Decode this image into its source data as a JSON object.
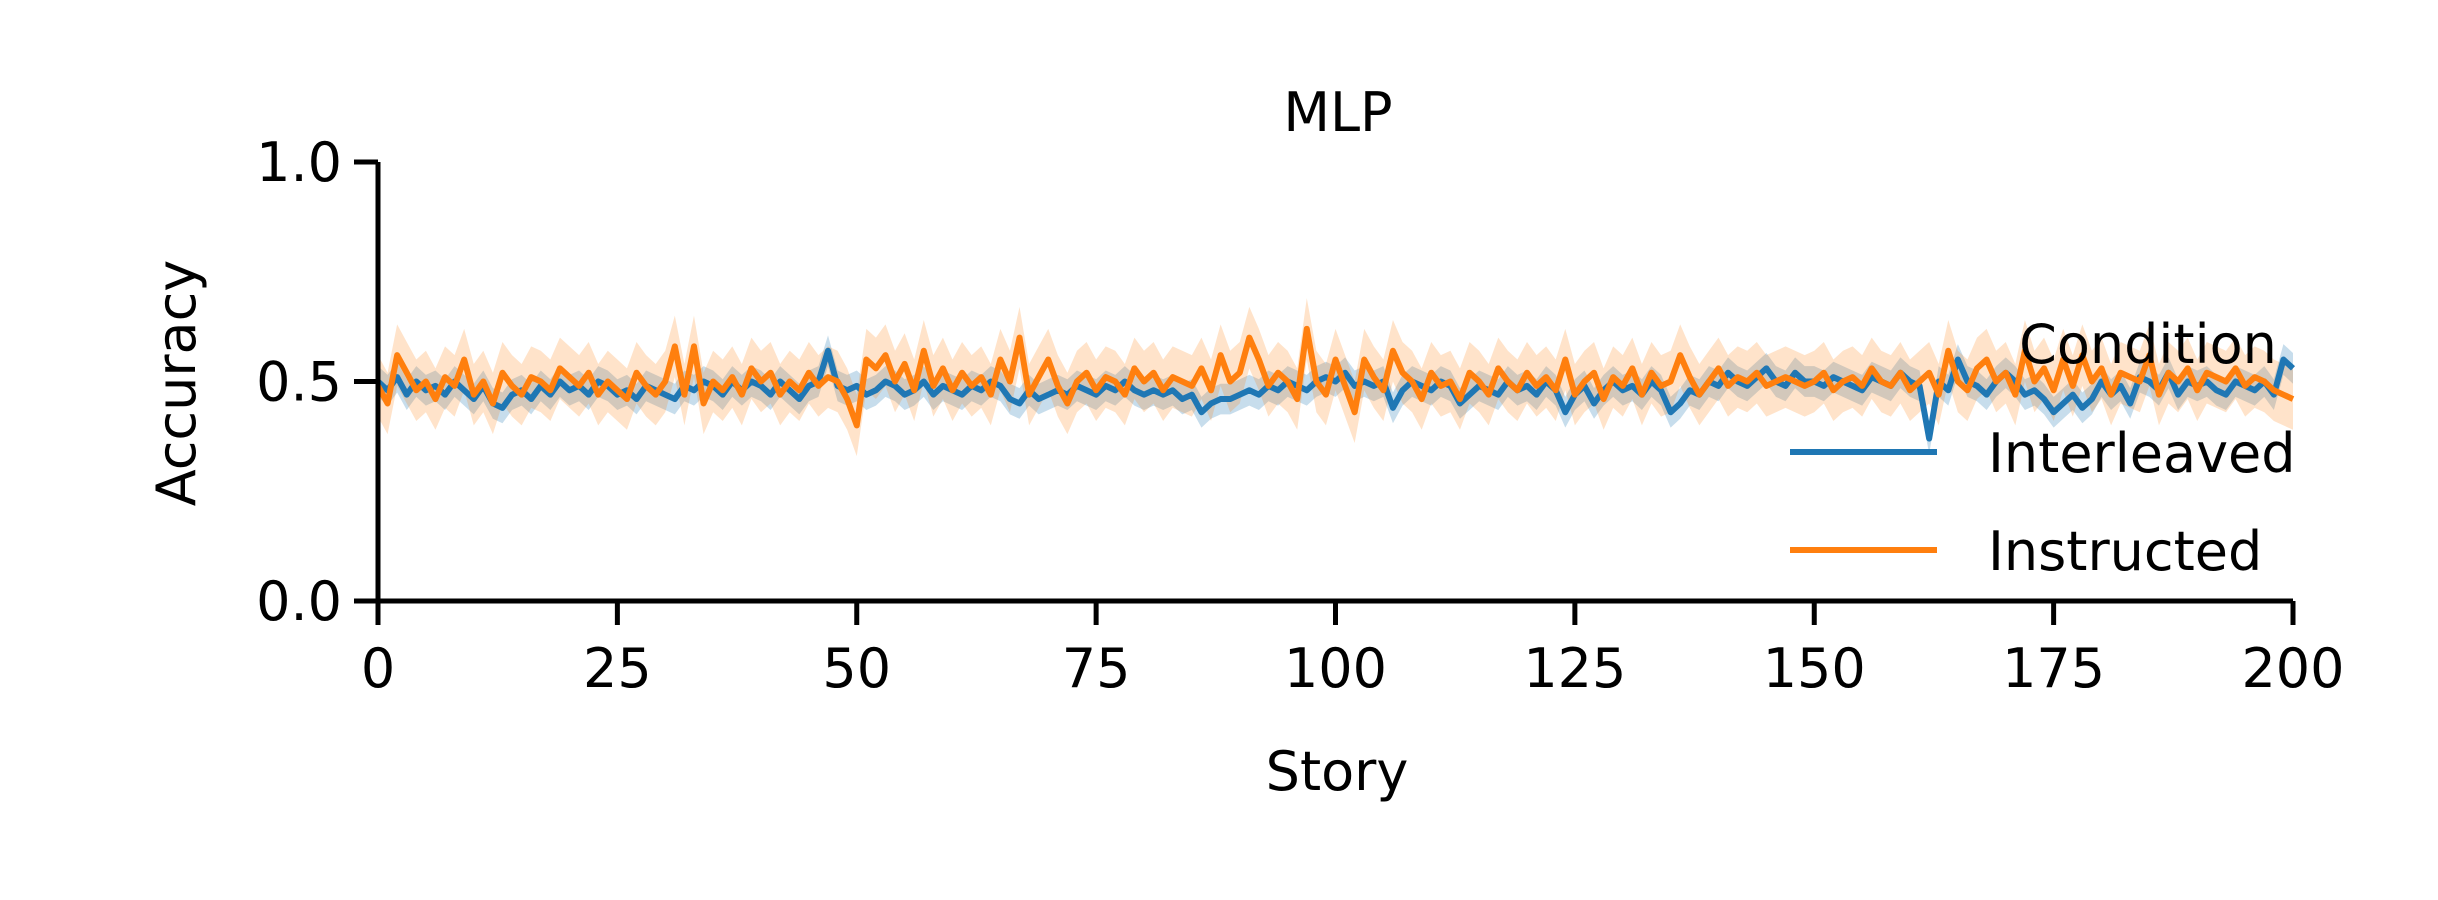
{
  "chart_data": {
    "type": "line",
    "title": "MLP",
    "xlabel": "Story",
    "ylabel": "Accuracy",
    "xlim": [
      0,
      200
    ],
    "ylim": [
      0.0,
      1.0
    ],
    "xticks": [
      "0",
      "25",
      "50",
      "75",
      "100",
      "125",
      "150",
      "175",
      "200"
    ],
    "yticks": [
      "0.0",
      "0.5",
      "1.0"
    ],
    "grid": false,
    "legend": {
      "title": "Condition",
      "position": "right"
    },
    "series": [
      {
        "name": "Interleaved",
        "color": "#1f77b4",
        "band_halfwidth": 0.035,
        "x_start": 0,
        "x_step": 1,
        "values": [
          0.5,
          0.48,
          0.51,
          0.47,
          0.5,
          0.48,
          0.49,
          0.47,
          0.5,
          0.48,
          0.46,
          0.49,
          0.45,
          0.44,
          0.47,
          0.48,
          0.46,
          0.49,
          0.47,
          0.5,
          0.48,
          0.49,
          0.47,
          0.5,
          0.49,
          0.47,
          0.48,
          0.46,
          0.49,
          0.48,
          0.47,
          0.46,
          0.49,
          0.48,
          0.5,
          0.49,
          0.47,
          0.5,
          0.48,
          0.5,
          0.49,
          0.47,
          0.5,
          0.48,
          0.46,
          0.49,
          0.5,
          0.57,
          0.49,
          0.48,
          0.49,
          0.47,
          0.48,
          0.5,
          0.49,
          0.47,
          0.48,
          0.5,
          0.47,
          0.49,
          0.48,
          0.47,
          0.49,
          0.48,
          0.5,
          0.49,
          0.46,
          0.45,
          0.48,
          0.46,
          0.47,
          0.48,
          0.47,
          0.49,
          0.48,
          0.47,
          0.49,
          0.48,
          0.5,
          0.48,
          0.47,
          0.48,
          0.47,
          0.48,
          0.46,
          0.47,
          0.43,
          0.45,
          0.46,
          0.46,
          0.47,
          0.48,
          0.47,
          0.49,
          0.48,
          0.5,
          0.49,
          0.48,
          0.5,
          0.51,
          0.5,
          0.52,
          0.49,
          0.5,
          0.49,
          0.5,
          0.44,
          0.48,
          0.5,
          0.49,
          0.48,
          0.5,
          0.49,
          0.45,
          0.47,
          0.49,
          0.48,
          0.47,
          0.5,
          0.48,
          0.49,
          0.47,
          0.5,
          0.48,
          0.43,
          0.47,
          0.49,
          0.45,
          0.48,
          0.5,
          0.48,
          0.49,
          0.47,
          0.5,
          0.48,
          0.43,
          0.45,
          0.48,
          0.47,
          0.5,
          0.49,
          0.52,
          0.5,
          0.49,
          0.51,
          0.53,
          0.5,
          0.49,
          0.52,
          0.5,
          0.5,
          0.49,
          0.51,
          0.5,
          0.49,
          0.48,
          0.51,
          0.5,
          0.49,
          0.52,
          0.5,
          0.49,
          0.37,
          0.5,
          0.48,
          0.55,
          0.5,
          0.49,
          0.47,
          0.5,
          0.52,
          0.5,
          0.47,
          0.48,
          0.46,
          0.43,
          0.45,
          0.47,
          0.44,
          0.46,
          0.5,
          0.47,
          0.49,
          0.45,
          0.51,
          0.5,
          0.48,
          0.52,
          0.47,
          0.5,
          0.49,
          0.5,
          0.48,
          0.47,
          0.5,
          0.49,
          0.48,
          0.5,
          0.47,
          0.55,
          0.53
        ]
      },
      {
        "name": "Instructed",
        "color": "#ff7f0e",
        "band_halfwidth": 0.07,
        "x_start": 0,
        "x_step": 1,
        "values": [
          0.49,
          0.45,
          0.56,
          0.52,
          0.48,
          0.5,
          0.46,
          0.51,
          0.49,
          0.55,
          0.47,
          0.5,
          0.45,
          0.52,
          0.49,
          0.47,
          0.51,
          0.5,
          0.48,
          0.53,
          0.51,
          0.49,
          0.52,
          0.47,
          0.5,
          0.48,
          0.46,
          0.52,
          0.49,
          0.47,
          0.5,
          0.58,
          0.47,
          0.58,
          0.45,
          0.5,
          0.48,
          0.51,
          0.47,
          0.53,
          0.5,
          0.52,
          0.47,
          0.5,
          0.48,
          0.52,
          0.49,
          0.51,
          0.5,
          0.46,
          0.4,
          0.55,
          0.53,
          0.56,
          0.5,
          0.54,
          0.48,
          0.57,
          0.49,
          0.53,
          0.48,
          0.52,
          0.49,
          0.51,
          0.47,
          0.55,
          0.5,
          0.6,
          0.47,
          0.51,
          0.55,
          0.49,
          0.45,
          0.5,
          0.52,
          0.48,
          0.51,
          0.5,
          0.47,
          0.53,
          0.5,
          0.52,
          0.48,
          0.51,
          0.5,
          0.49,
          0.53,
          0.48,
          0.56,
          0.5,
          0.52,
          0.6,
          0.55,
          0.49,
          0.52,
          0.5,
          0.46,
          0.62,
          0.5,
          0.47,
          0.55,
          0.49,
          0.43,
          0.55,
          0.51,
          0.48,
          0.57,
          0.52,
          0.5,
          0.46,
          0.52,
          0.49,
          0.5,
          0.46,
          0.52,
          0.5,
          0.47,
          0.53,
          0.5,
          0.48,
          0.52,
          0.49,
          0.51,
          0.48,
          0.55,
          0.47,
          0.5,
          0.52,
          0.46,
          0.51,
          0.49,
          0.53,
          0.47,
          0.52,
          0.49,
          0.5,
          0.56,
          0.51,
          0.47,
          0.5,
          0.53,
          0.49,
          0.51,
          0.5,
          0.52,
          0.49,
          0.5,
          0.51,
          0.5,
          0.49,
          0.5,
          0.52,
          0.48,
          0.5,
          0.51,
          0.49,
          0.53,
          0.5,
          0.49,
          0.52,
          0.48,
          0.5,
          0.52,
          0.47,
          0.57,
          0.5,
          0.48,
          0.53,
          0.55,
          0.5,
          0.52,
          0.47,
          0.57,
          0.5,
          0.53,
          0.48,
          0.55,
          0.49,
          0.56,
          0.5,
          0.53,
          0.47,
          0.52,
          0.51,
          0.5,
          0.56,
          0.47,
          0.52,
          0.5,
          0.53,
          0.48,
          0.52,
          0.51,
          0.5,
          0.53,
          0.49,
          0.51,
          0.5,
          0.48,
          0.47,
          0.46
        ]
      }
    ]
  }
}
